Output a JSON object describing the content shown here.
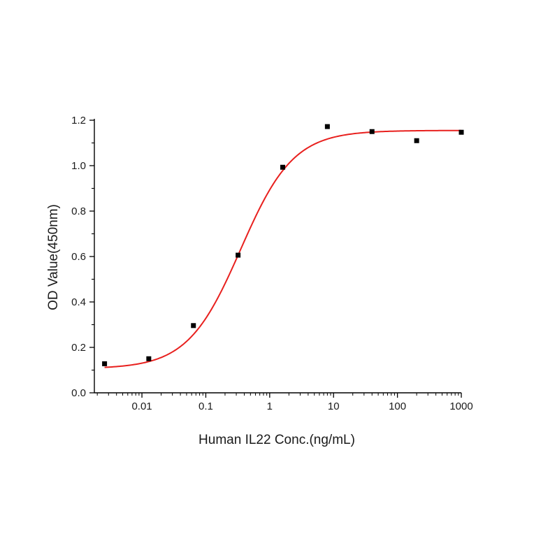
{
  "chart_data": {
    "type": "scatter",
    "xlabel": "Human IL22 Conc.(ng/mL)",
    "ylabel": "OD Value(450nm)",
    "x_scale": "log",
    "xlim": [
      0.0018,
      1000
    ],
    "ylim": [
      0.0,
      1.2
    ],
    "x_ticks": [
      0.01,
      0.1,
      1,
      10,
      100,
      1000
    ],
    "x_tick_labels": [
      "0.01",
      "0.1",
      "1",
      "10",
      "100",
      "1000"
    ],
    "y_ticks": [
      0.0,
      0.2,
      0.4,
      0.6,
      0.8,
      1.0,
      1.2
    ],
    "y_tick_labels": [
      "0.0",
      "0.2",
      "0.4",
      "0.6",
      "0.8",
      "1.0",
      "1.2"
    ],
    "grid": false,
    "series": [
      {
        "kind": "points",
        "marker": "square",
        "color": "#000000",
        "points": [
          {
            "x": 0.0026,
            "y": 0.128
          },
          {
            "x": 0.0128,
            "y": 0.15
          },
          {
            "x": 0.064,
            "y": 0.296
          },
          {
            "x": 0.32,
            "y": 0.606
          },
          {
            "x": 1.6,
            "y": 0.993
          },
          {
            "x": 8.0,
            "y": 1.172
          },
          {
            "x": 40.0,
            "y": 1.15
          },
          {
            "x": 200.0,
            "y": 1.11
          },
          {
            "x": 1000.0,
            "y": 1.147
          }
        ]
      },
      {
        "kind": "fit_curve",
        "color": "#e8201e",
        "model": "4PL",
        "bottom": 0.106,
        "top": 1.155,
        "ec50": 0.35,
        "hill": 1.05,
        "x_range": [
          0.0026,
          1000
        ]
      }
    ]
  }
}
